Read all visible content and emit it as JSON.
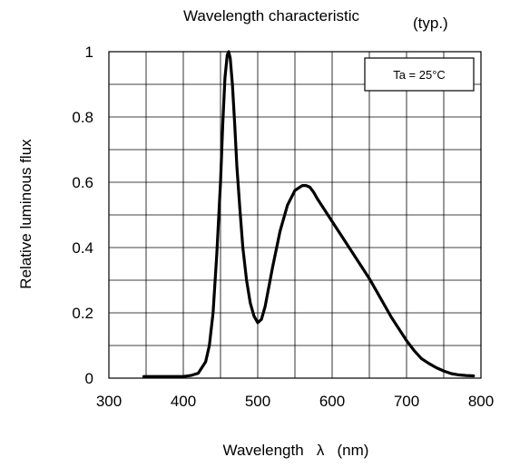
{
  "chart_data": {
    "type": "line",
    "title": "Wavelength characteristic",
    "subtitle": "(typ.)",
    "xlabel": "Wavelength   λ   (nm)",
    "ylabel": "Relative luminous flux",
    "xlim": [
      300,
      800
    ],
    "ylim": [
      0,
      1
    ],
    "xticks": [
      300,
      400,
      500,
      600,
      700,
      800
    ],
    "xtick_labels": [
      "300",
      "400",
      "500",
      "600",
      "700",
      "800"
    ],
    "yticks": [
      0,
      0.2,
      0.4,
      0.6,
      0.8,
      1
    ],
    "ytick_labels": [
      "0",
      "0.2",
      "0.4",
      "0.6",
      "0.8",
      "1"
    ],
    "grid": true,
    "minor_x_step": 50,
    "minor_y_step": 0.1,
    "annotation": "Ta = 25°C",
    "line_color": "#000000",
    "series": [
      {
        "x": [
          347,
          380,
          400,
          410,
          420,
          430,
          435,
          440,
          445,
          450,
          453,
          456,
          459,
          461,
          463,
          466,
          469,
          472,
          476,
          480,
          485,
          490,
          495,
          500,
          505,
          510,
          520,
          530,
          540,
          550,
          560,
          565,
          570,
          575,
          580,
          590,
          600,
          610,
          620,
          630,
          640,
          650,
          660,
          670,
          680,
          690,
          700,
          710,
          720,
          730,
          740,
          750,
          760,
          770,
          780,
          790
        ],
        "y": [
          0.005,
          0.005,
          0.005,
          0.008,
          0.015,
          0.05,
          0.1,
          0.2,
          0.38,
          0.6,
          0.78,
          0.92,
          0.99,
          1.0,
          0.98,
          0.9,
          0.78,
          0.65,
          0.52,
          0.4,
          0.3,
          0.23,
          0.19,
          0.17,
          0.18,
          0.22,
          0.34,
          0.45,
          0.53,
          0.575,
          0.59,
          0.59,
          0.585,
          0.57,
          0.55,
          0.515,
          0.48,
          0.445,
          0.41,
          0.375,
          0.34,
          0.305,
          0.265,
          0.225,
          0.185,
          0.15,
          0.115,
          0.085,
          0.06,
          0.045,
          0.032,
          0.022,
          0.014,
          0.01,
          0.008,
          0.007
        ]
      }
    ]
  }
}
